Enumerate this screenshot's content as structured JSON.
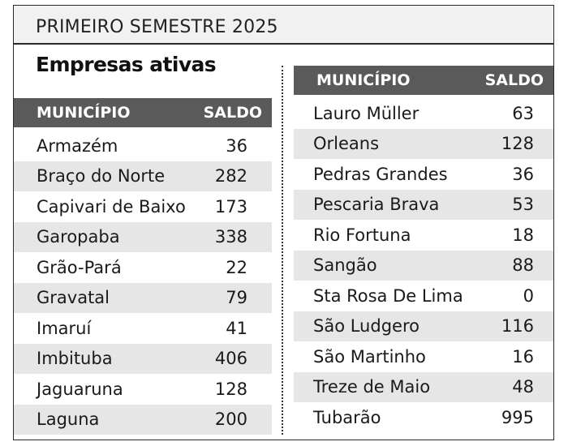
{
  "header": {
    "semester": "PRIMEIRO SEMESTRE 2025",
    "title": "Empresas ativas"
  },
  "columns": {
    "municipio": "MUNICÍPIO",
    "saldo": "SALDO"
  },
  "left_table": [
    {
      "municipio": "Armazém",
      "saldo": "36"
    },
    {
      "municipio": "Braço do Norte",
      "saldo": "282"
    },
    {
      "municipio": "Capivari de Baixo",
      "saldo": "173"
    },
    {
      "municipio": "Garopaba",
      "saldo": "338"
    },
    {
      "municipio": "Grão-Pará",
      "saldo": "22"
    },
    {
      "municipio": "Gravatal",
      "saldo": "79"
    },
    {
      "municipio": "Imaruí",
      "saldo": "41"
    },
    {
      "municipio": "Imbituba",
      "saldo": "406"
    },
    {
      "municipio": "Jaguaruna",
      "saldo": "128"
    },
    {
      "municipio": "Laguna",
      "saldo": "200"
    }
  ],
  "right_table": [
    {
      "municipio": "Lauro Müller",
      "saldo": "63"
    },
    {
      "municipio": "Orleans",
      "saldo": "128"
    },
    {
      "municipio": "Pedras Grandes",
      "saldo": "36"
    },
    {
      "municipio": "Pescaria Brava",
      "saldo": "53"
    },
    {
      "municipio": "Rio Fortuna",
      "saldo": "18"
    },
    {
      "municipio": "Sangão",
      "saldo": "88"
    },
    {
      "municipio": "Sta Rosa De Lima",
      "saldo": "0"
    },
    {
      "municipio": "São Ludgero",
      "saldo": "116"
    },
    {
      "municipio": "São Martinho",
      "saldo": "16"
    },
    {
      "municipio": "Treze de Maio",
      "saldo": "48"
    },
    {
      "municipio": "Tubarão",
      "saldo": "995"
    }
  ]
}
